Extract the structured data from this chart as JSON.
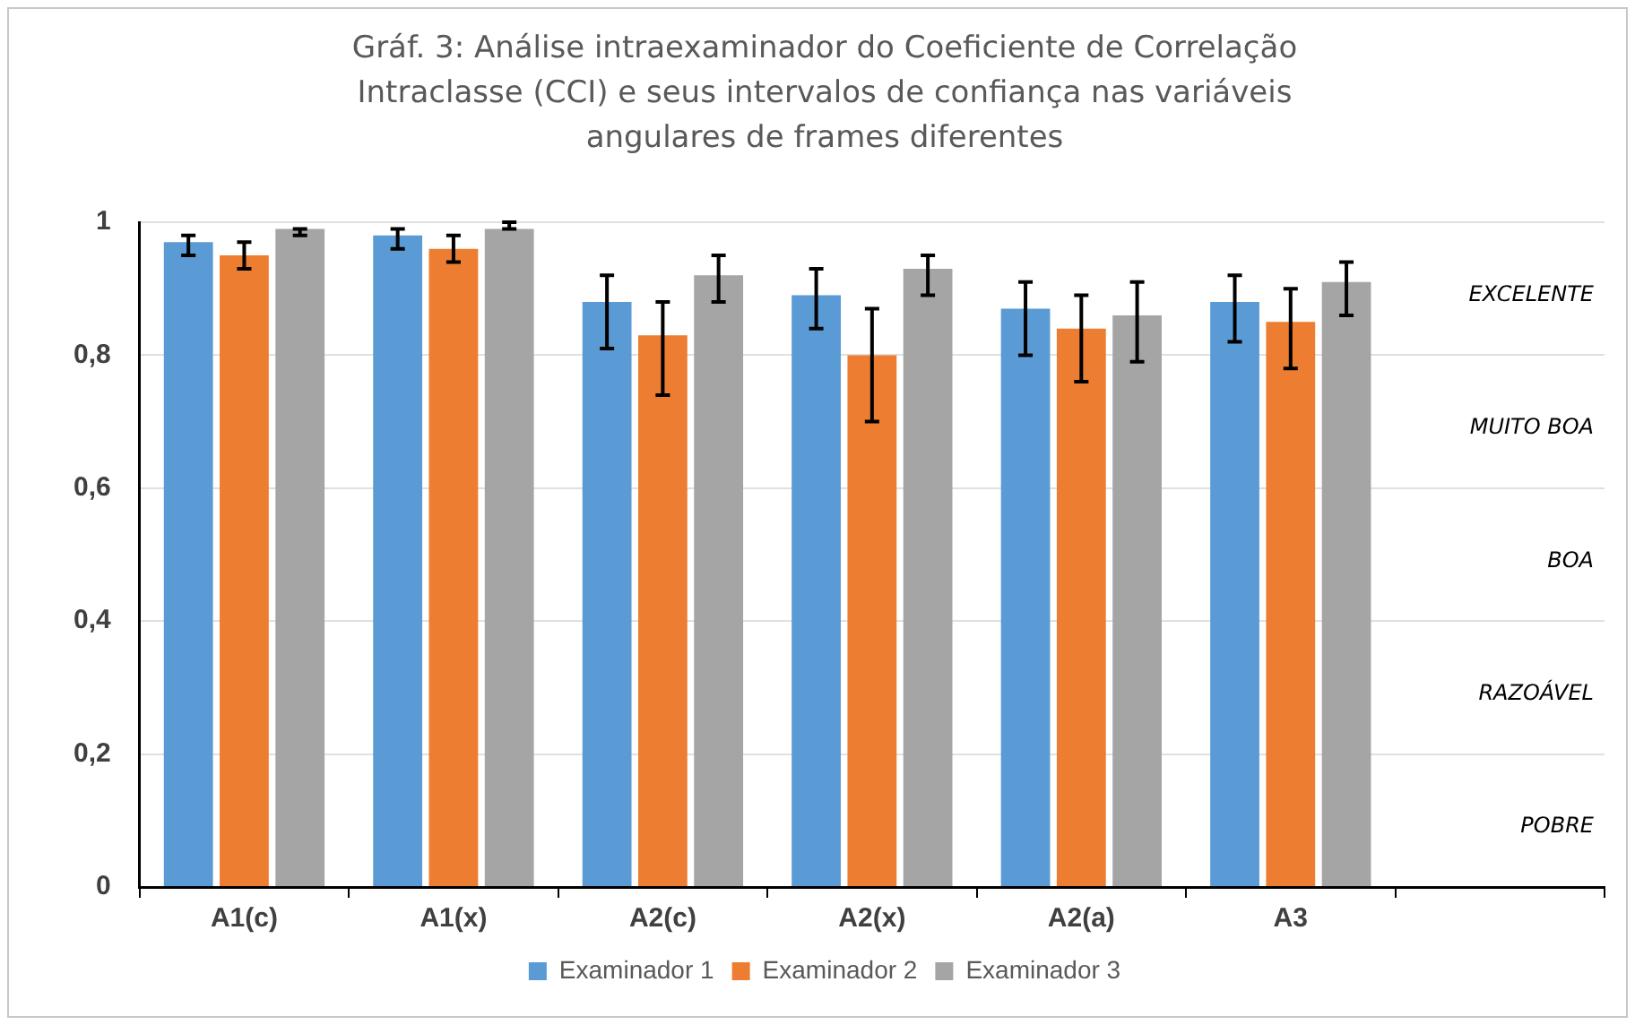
{
  "chart_data": {
    "type": "bar",
    "title": "Gráf. 3: Análise intraexaminador do Coeficiente de Correlação Intraclasse (CCI) e seus intervalos de confiança nas variáveis angulares de frames diferentes",
    "categories": [
      "A1(c)",
      "A1(x)",
      "A2(c)",
      "A2(x)",
      "A2(a)",
      "A3",
      null
    ],
    "series": [
      {
        "name": "Examinador 1",
        "color": "#5b9bd5",
        "values": [
          0.97,
          0.98,
          0.88,
          0.89,
          0.87,
          0.88,
          null
        ],
        "errors": [
          [
            0.95,
            0.98
          ],
          [
            0.96,
            0.99
          ],
          [
            0.81,
            0.92
          ],
          [
            0.84,
            0.93
          ],
          [
            0.8,
            0.91
          ],
          [
            0.82,
            0.92
          ],
          null
        ]
      },
      {
        "name": "Examinador 2",
        "color": "#ed7d31",
        "values": [
          0.95,
          0.96,
          0.83,
          0.8,
          0.84,
          0.85,
          null
        ],
        "errors": [
          [
            0.93,
            0.97
          ],
          [
            0.94,
            0.98
          ],
          [
            0.74,
            0.88
          ],
          [
            0.7,
            0.87
          ],
          [
            0.76,
            0.89
          ],
          [
            0.78,
            0.9
          ],
          null
        ]
      },
      {
        "name": "Examinador 3",
        "color": "#a5a5a5",
        "values": [
          0.99,
          0.99,
          0.92,
          0.93,
          0.86,
          0.91,
          null
        ],
        "errors": [
          [
            0.98,
            0.99
          ],
          [
            0.99,
            1.0
          ],
          [
            0.88,
            0.95
          ],
          [
            0.89,
            0.95
          ],
          [
            0.79,
            0.91
          ],
          [
            0.86,
            0.94
          ],
          null
        ]
      }
    ],
    "ylim": [
      0,
      1
    ],
    "yticks": [
      0,
      {
        "value": 0.2,
        "label": "0,2"
      },
      {
        "value": 0.4,
        "label": "0,4"
      },
      {
        "value": 0.6,
        "label": "0,6"
      },
      {
        "value": 0.8,
        "label": "0,8"
      },
      1
    ],
    "annotations": [
      "EXCELENTE",
      "MUITO BOA",
      "BOA",
      "RAZOÁVEL",
      "POBRE"
    ],
    "grid": "y",
    "legend": "bottom"
  }
}
